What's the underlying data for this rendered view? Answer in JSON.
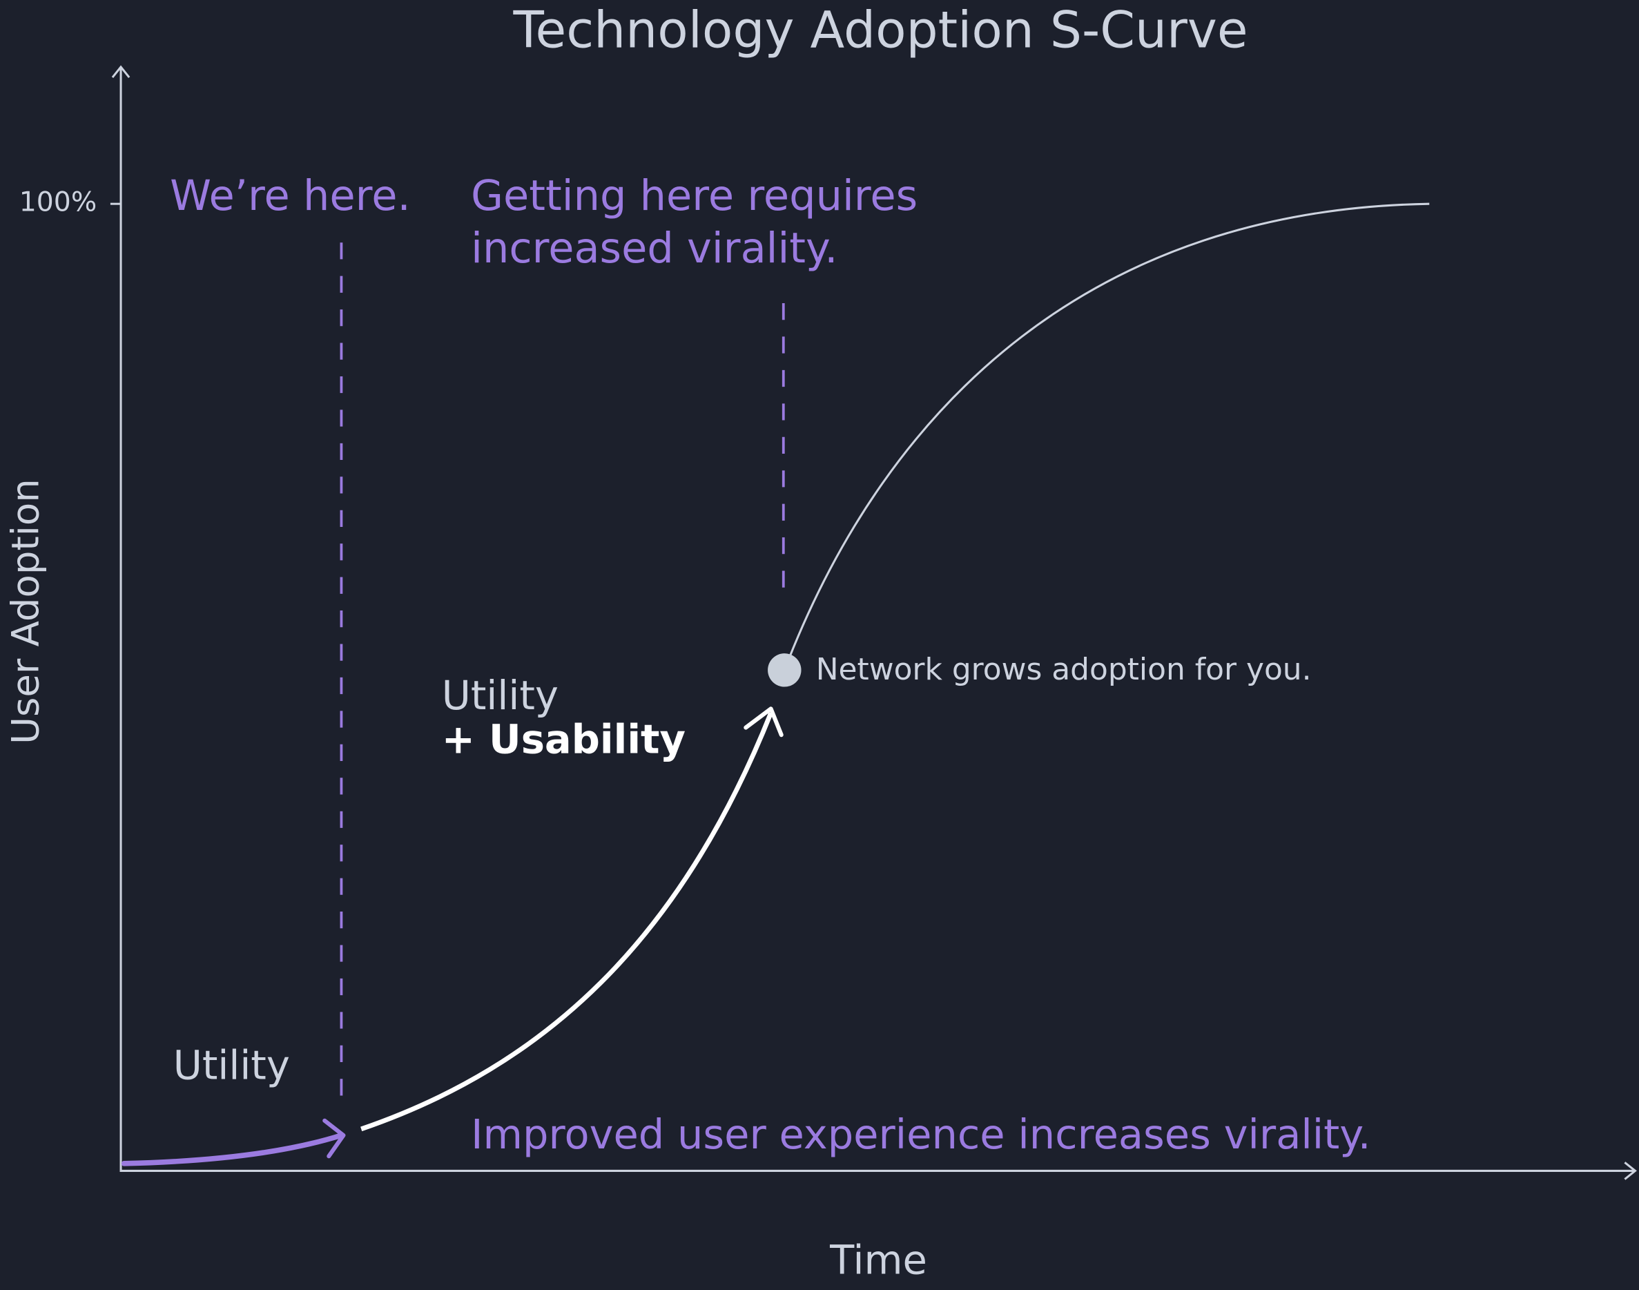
{
  "header": {
    "title": "Technology Adoption S-Curve"
  },
  "axes": {
    "y_label": "User Adoption",
    "x_label": "Time",
    "y_tick": "100%"
  },
  "annotations": {
    "current": "We’re here.",
    "target": [
      "Getting here requires",
      "increased virality."
    ],
    "inflection": "Network grows adoption for you.",
    "phase_two": [
      "Utility",
      "+ Usability"
    ],
    "phase_one": "Utility",
    "bottom_note": "Improved user experience increases virality."
  }
}
